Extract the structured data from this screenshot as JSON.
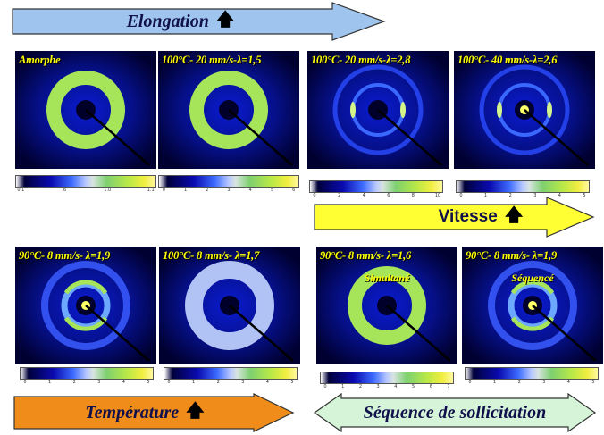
{
  "arrows": {
    "elongation": {
      "label": "Elongation",
      "color": "#9fc5ee",
      "direction": "right",
      "icon": "up-arrow-icon"
    },
    "vitesse": {
      "label": "Vitesse",
      "color": "#ffff33",
      "direction": "right",
      "icon": "up-arrow-icon"
    },
    "temperature": {
      "label": "Température",
      "color": "#f08c1a",
      "direction": "right",
      "icon": "up-arrow-icon"
    },
    "sequence": {
      "label": "Séquence de sollicitation",
      "color": "#d6f5d8",
      "direction": "both"
    }
  },
  "panels": [
    {
      "caption": "Amorphe",
      "subcaption": "",
      "ring": "#a6e55a",
      "style": "wide-ring",
      "colorbar_ticks": [
        "0.1",
        ".6",
        "1.0",
        "1.1"
      ]
    },
    {
      "caption": "100°C- 20 mm/s-λ=1,5",
      "subcaption": "",
      "ring": "#a6e55a",
      "style": "wide-ring",
      "colorbar_ticks": [
        "0",
        "1",
        "2",
        "3",
        "4",
        "5",
        "6"
      ]
    },
    {
      "caption": "100°C- 20 mm/s-λ=2,8",
      "subcaption": "",
      "ring": "#3a68ff",
      "style": "oriented",
      "colorbar_ticks": [
        "0",
        "2",
        "4",
        "6",
        "8",
        "10"
      ]
    },
    {
      "caption": "100°C- 40 mm/s-λ=2,6",
      "subcaption": "",
      "ring": "#3a68ff",
      "style": "oriented-spot",
      "colorbar_ticks": [
        "0",
        "1",
        "2",
        "3",
        "4",
        "5"
      ]
    },
    {
      "caption": "90°C- 8 mm/s- λ=1,9",
      "subcaption": "",
      "ring": "#6ca8ff",
      "style": "spot",
      "colorbar_ticks": [
        "0",
        "1",
        "2",
        "3",
        "4",
        "5"
      ]
    },
    {
      "caption": "100°C- 8 mm/s- λ=1,7",
      "subcaption": "",
      "ring": "#c4d6ff",
      "style": "pale-ring",
      "colorbar_ticks": [
        "0",
        "1",
        "2",
        "3",
        "4",
        "5"
      ]
    },
    {
      "caption": "90°C- 8 mm/s- λ=1,6",
      "subcaption": "Simultané",
      "ring": "#a6e55a",
      "style": "wide-ring",
      "colorbar_ticks": [
        "0",
        "1",
        "2",
        "3",
        "4",
        "5",
        "6",
        "7"
      ]
    },
    {
      "caption": "90°C- 8 mm/s- λ=1,9",
      "subcaption": "Séquencé",
      "ring": "#6ca8ff",
      "style": "spot",
      "colorbar_ticks": [
        "0",
        "1",
        "2",
        "3",
        "4",
        "5"
      ]
    }
  ]
}
